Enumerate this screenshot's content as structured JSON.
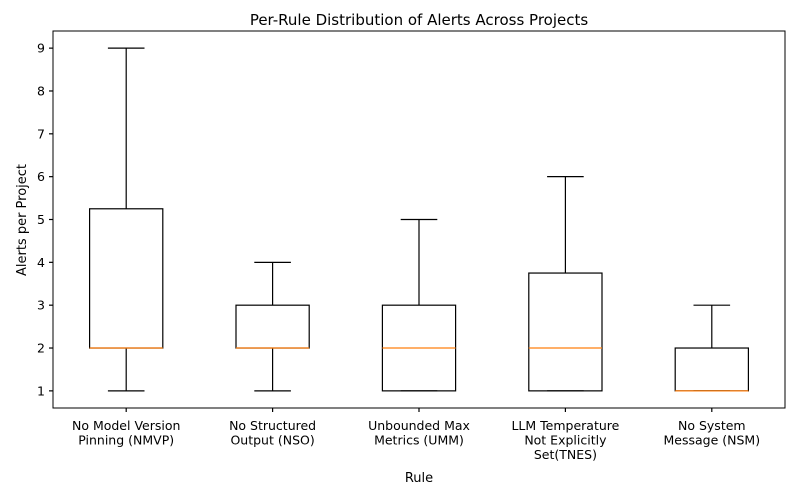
{
  "chart_data": {
    "type": "box",
    "title": "Per-Rule Distribution of Alerts Across Projects",
    "xlabel": "Rule",
    "ylabel": "Alerts per Project",
    "ylim": [
      0.6,
      9.4
    ],
    "yticks": [
      1,
      2,
      3,
      4,
      5,
      6,
      7,
      8,
      9
    ],
    "grid": false,
    "colors": {
      "box": "#000000",
      "median": "#ff7f0e"
    },
    "categories": [
      [
        "No Model Version",
        "Pinning (NMVP)"
      ],
      [
        "No Structured",
        "Output (NSO)"
      ],
      [
        "Unbounded Max",
        "Metrics (UMM)"
      ],
      [
        "LLM Temperature",
        "Not Explicitly",
        "Set(TNES)"
      ],
      [
        "No System",
        "Message (NSM)"
      ]
    ],
    "boxes": [
      {
        "whisker_low": 1,
        "q1": 2,
        "median": 2,
        "q3": 5.25,
        "whisker_high": 9
      },
      {
        "whisker_low": 1,
        "q1": 2,
        "median": 2,
        "q3": 3,
        "whisker_high": 4
      },
      {
        "whisker_low": 1,
        "q1": 1,
        "median": 2,
        "q3": 3,
        "whisker_high": 5
      },
      {
        "whisker_low": 1,
        "q1": 1,
        "median": 2,
        "q3": 3.75,
        "whisker_high": 6
      },
      {
        "whisker_low": 1,
        "q1": 1,
        "median": 1,
        "q3": 2,
        "whisker_high": 3
      }
    ]
  }
}
